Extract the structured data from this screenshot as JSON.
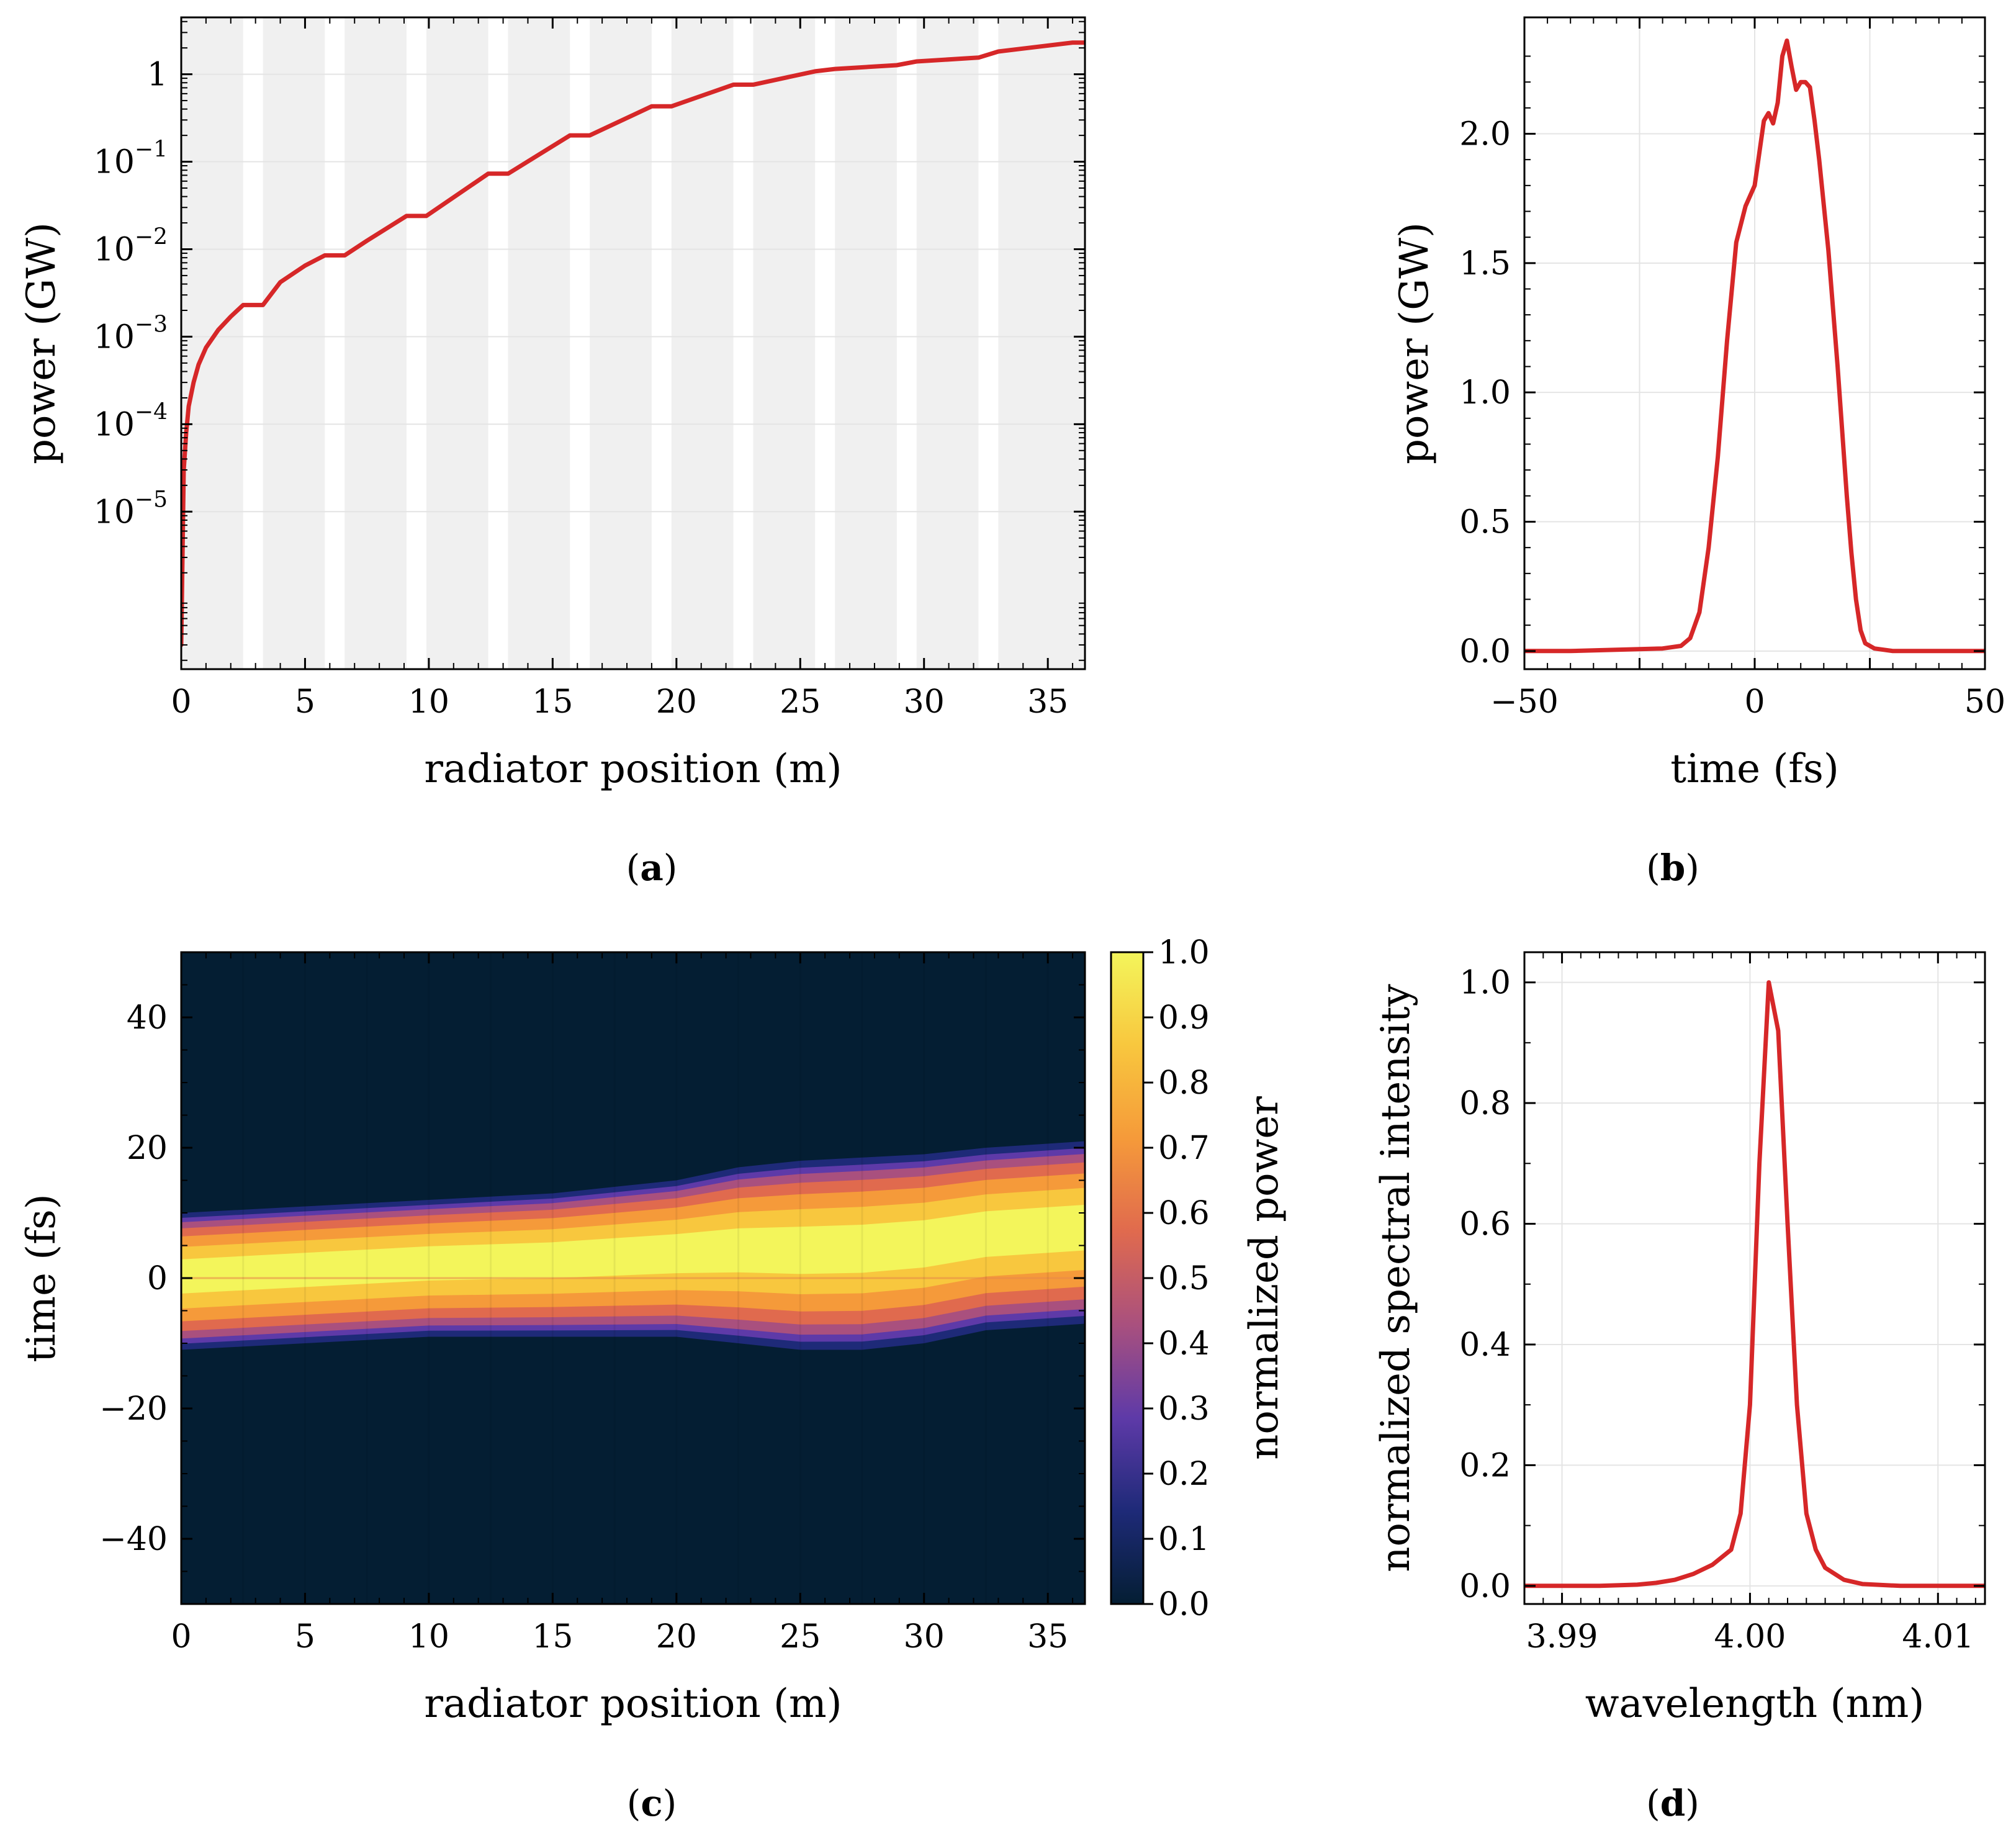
{
  "panels": [
    {
      "label": "a"
    },
    {
      "label": "b"
    },
    {
      "label": "c"
    },
    {
      "label": "d"
    }
  ],
  "colors": {
    "line": "#d62728",
    "band": "#f0f0f0",
    "grid": "#e4e4e4"
  },
  "chart_data": [
    {
      "id": "a",
      "type": "line",
      "xlabel": "radiator position (m)",
      "ylabel": "power (GW)",
      "xlim": [
        0,
        36.5
      ],
      "ylim_log10": [
        -6.8,
        0.65
      ],
      "yscale": "log",
      "grid": true,
      "xticks": [
        0,
        5,
        10,
        15,
        20,
        25,
        30,
        35
      ],
      "xtick_labels": [
        "0",
        "5",
        "10",
        "15",
        "20",
        "25",
        "30",
        "35"
      ],
      "yticks_log10": [
        0,
        -1,
        -2,
        -3,
        -4,
        -5
      ],
      "ytick_labels": [
        {
          "base": "1",
          "exp": ""
        },
        {
          "base": "10",
          "exp": "−1"
        },
        {
          "base": "10",
          "exp": "−2"
        },
        {
          "base": "10",
          "exp": "−3"
        },
        {
          "base": "10",
          "exp": "−4"
        },
        {
          "base": "10",
          "exp": "−5"
        }
      ],
      "shaded_regions": [
        [
          0,
          2.5
        ],
        [
          3.3,
          5.8
        ],
        [
          6.6,
          9.1
        ],
        [
          9.9,
          12.4
        ],
        [
          13.2,
          15.7
        ],
        [
          16.5,
          19.0
        ],
        [
          19.8,
          22.3
        ],
        [
          23.1,
          25.6
        ],
        [
          26.4,
          28.9
        ],
        [
          29.7,
          32.2
        ],
        [
          33.0,
          36.5
        ]
      ],
      "series": [
        {
          "x": [
            0,
            0.1,
            0.2,
            0.3,
            0.5,
            0.7,
            1.0,
            1.5,
            2.0,
            2.5,
            3.3,
            4.0,
            5.0,
            5.8,
            6.6,
            7.5,
            9.1,
            9.9,
            12.4,
            13.2,
            15.7,
            16.5,
            19.0,
            19.8,
            22.3,
            23.1,
            25.6,
            26.4,
            28.9,
            29.7,
            32.2,
            33.0,
            36.0,
            36.5
          ],
          "y": [
            3e-07,
            3e-05,
            8e-05,
            0.00016,
            0.0003,
            0.00048,
            0.00075,
            0.0012,
            0.0017,
            0.0023,
            0.0023,
            0.0042,
            0.0065,
            0.0085,
            0.0085,
            0.0125,
            0.024,
            0.024,
            0.073,
            0.073,
            0.2,
            0.2,
            0.43,
            0.43,
            0.76,
            0.76,
            1.08,
            1.15,
            1.27,
            1.4,
            1.55,
            1.82,
            2.3,
            2.3
          ]
        }
      ]
    },
    {
      "id": "b",
      "type": "line",
      "xlabel": "time (fs)",
      "ylabel": "power (GW)",
      "xlim": [
        -50,
        50
      ],
      "ylim": [
        -0.07,
        2.45
      ],
      "grid": true,
      "xticks": [
        -50,
        0,
        50
      ],
      "xtick_labels": [
        "−50",
        "0",
        "50"
      ],
      "yticks": [
        0,
        0.5,
        1.0,
        1.5,
        2.0
      ],
      "ytick_labels": [
        "0.0",
        "0.5",
        "1.0",
        "1.5",
        "2.0"
      ],
      "series": [
        {
          "x": [
            -50,
            -40,
            -30,
            -20,
            -16,
            -14,
            -12,
            -10,
            -8,
            -6,
            -4,
            -2,
            0,
            2,
            3,
            4,
            5,
            6,
            7,
            8,
            9,
            10,
            11,
            12,
            13,
            14,
            16,
            18,
            20,
            21,
            22,
            23,
            24,
            26,
            30,
            40,
            50
          ],
          "y": [
            0.0,
            0.0,
            0.005,
            0.01,
            0.02,
            0.05,
            0.15,
            0.4,
            0.75,
            1.2,
            1.58,
            1.72,
            1.8,
            2.05,
            2.08,
            2.04,
            2.12,
            2.3,
            2.36,
            2.26,
            2.17,
            2.2,
            2.2,
            2.18,
            2.05,
            1.9,
            1.55,
            1.1,
            0.6,
            0.38,
            0.2,
            0.08,
            0.03,
            0.01,
            0.0,
            0.0,
            0.0
          ]
        }
      ]
    },
    {
      "id": "c",
      "type": "heatmap",
      "xlabel": "radiator position (m)",
      "ylabel": "time (fs)",
      "colorbar_label": "normalized power",
      "xlim": [
        0,
        36.5
      ],
      "ylim": [
        -50,
        50
      ],
      "xticks": [
        0,
        5,
        10,
        15,
        20,
        25,
        30,
        35
      ],
      "xtick_labels": [
        "0",
        "5",
        "10",
        "15",
        "20",
        "25",
        "30",
        "35"
      ],
      "yticks": [
        40,
        20,
        0,
        -20,
        -40
      ],
      "ytick_labels": [
        "40",
        "20",
        "0",
        "−20",
        "−40"
      ],
      "colorbar_ticks": [
        0,
        0.1,
        0.2,
        0.3,
        0.4,
        0.5,
        0.6,
        0.7,
        0.8,
        0.9,
        1.0
      ],
      "colorbar_tick_labels": [
        "0.0",
        "0.1",
        "0.2",
        "0.3",
        "0.4",
        "0.5",
        "0.6",
        "0.7",
        "0.8",
        "0.9",
        "1.0"
      ],
      "colormap": [
        "#041e33",
        "#1e2a78",
        "#5e3aa8",
        "#a9507e",
        "#e06a4e",
        "#f59a3a",
        "#f8c73e",
        "#f3f55b"
      ],
      "pulse_envelope": {
        "x": [
          0,
          5,
          10,
          15,
          20,
          22.5,
          25,
          27.5,
          30,
          32.5,
          36.5
        ],
        "upper": [
          10,
          11,
          12,
          13,
          15,
          17,
          18,
          18.5,
          19,
          20,
          21
        ],
        "lower": [
          -11,
          -10,
          -9,
          -9,
          -9,
          -10,
          -11,
          -11,
          -10,
          -8,
          -7
        ]
      }
    },
    {
      "id": "d",
      "type": "line",
      "xlabel": "wavelength (nm)",
      "ylabel": "normalized spectral intensity",
      "xlim": [
        3.988,
        4.0125
      ],
      "ylim": [
        -0.03,
        1.05
      ],
      "grid": true,
      "xticks": [
        3.99,
        4.0,
        4.01
      ],
      "xtick_labels": [
        "3.99",
        "4.00",
        "4.01"
      ],
      "yticks": [
        0,
        0.2,
        0.4,
        0.6,
        0.8,
        1.0
      ],
      "ytick_labels": [
        "0.0",
        "0.2",
        "0.4",
        "0.6",
        "0.8",
        "1.0"
      ],
      "series": [
        {
          "x": [
            3.988,
            3.992,
            3.994,
            3.995,
            3.996,
            3.997,
            3.998,
            3.999,
            3.9995,
            4.0,
            4.0005,
            4.001,
            4.0015,
            4.002,
            4.0025,
            4.003,
            4.0035,
            4.004,
            4.005,
            4.006,
            4.008,
            4.0125
          ],
          "y": [
            0.0,
            0.0,
            0.002,
            0.005,
            0.01,
            0.02,
            0.035,
            0.06,
            0.12,
            0.3,
            0.7,
            1.0,
            0.92,
            0.6,
            0.3,
            0.12,
            0.06,
            0.03,
            0.01,
            0.003,
            0.0,
            0.0
          ]
        }
      ]
    }
  ]
}
